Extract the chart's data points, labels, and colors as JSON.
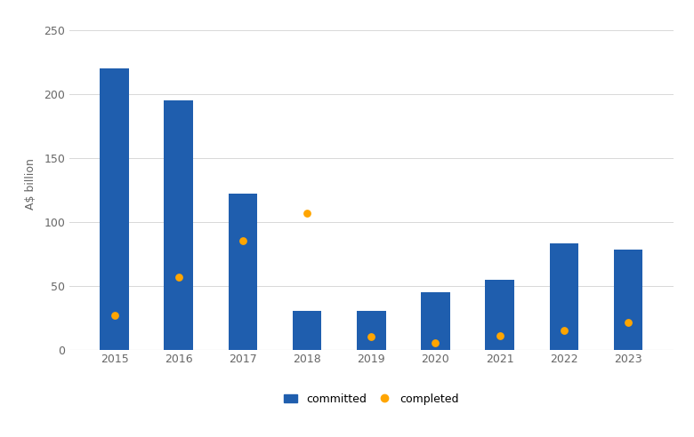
{
  "years": [
    2015,
    2016,
    2017,
    2018,
    2019,
    2020,
    2021,
    2022,
    2023
  ],
  "committed": [
    220,
    195,
    122,
    30,
    30,
    45,
    55,
    83,
    78
  ],
  "completed": [
    27,
    57,
    85,
    107,
    10,
    5,
    11,
    15,
    21
  ],
  "bar_color": "#1F5EAE",
  "dot_color": "#FFA500",
  "ylabel": "A$ billion",
  "ylim": [
    0,
    260
  ],
  "yticks": [
    0,
    50,
    100,
    150,
    200,
    250
  ],
  "background_color": "#FFFFFF",
  "grid_color": "#D8D8D8",
  "legend_committed": "committed",
  "legend_completed": "completed",
  "bar_width": 0.45,
  "dot_size": 40,
  "tick_fontsize": 9,
  "ylabel_fontsize": 9
}
